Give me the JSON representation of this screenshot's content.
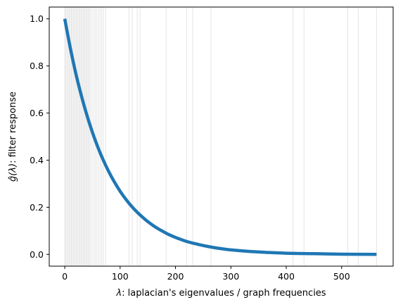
{
  "chart_data": {
    "type": "line",
    "title": "",
    "xlabel_symbol": "λ",
    "xlabel_text": ": laplacian's eigenvalues / graph frequencies",
    "ylabel_symbol": "ĝ(λ)",
    "ylabel_text": ": filter response",
    "xlim": [
      -28,
      593
    ],
    "ylim": [
      -0.05,
      1.05
    ],
    "xticks": [
      0,
      100,
      200,
      300,
      400,
      500
    ],
    "xtick_labels": [
      "0",
      "100",
      "200",
      "300",
      "400",
      "500"
    ],
    "yticks": [
      0.0,
      0.2,
      0.4,
      0.6,
      0.8,
      1.0
    ],
    "ytick_labels": [
      "0.0",
      "0.2",
      "0.4",
      "0.6",
      "0.8",
      "1.0"
    ],
    "grid": false,
    "line_color": "#1f77b4",
    "eigen_line_color": "#e4e4e4",
    "curve": {
      "x": [
        0,
        10,
        20,
        30,
        40,
        50,
        60,
        70,
        80,
        90,
        100,
        110,
        120,
        130,
        140,
        150,
        160,
        170,
        180,
        190,
        200,
        220,
        240,
        260,
        280,
        300,
        330,
        360,
        400,
        450,
        500,
        563
      ],
      "y": [
        1.0,
        0.877,
        0.768,
        0.674,
        0.591,
        0.518,
        0.454,
        0.398,
        0.349,
        0.306,
        0.268,
        0.235,
        0.206,
        0.181,
        0.159,
        0.139,
        0.122,
        0.107,
        0.094,
        0.082,
        0.072,
        0.055,
        0.043,
        0.033,
        0.025,
        0.019,
        0.013,
        0.009,
        0.005,
        0.003,
        0.001,
        0.0
      ]
    },
    "eigenvalues": [
      0,
      2,
      4,
      6,
      8,
      10,
      12,
      14,
      16,
      18,
      20,
      22,
      24,
      26,
      28,
      30,
      32,
      34,
      36,
      38,
      40,
      42,
      44,
      46,
      49,
      52,
      55,
      58,
      61,
      64,
      67,
      70,
      74,
      116,
      122,
      131,
      136,
      183,
      220,
      231,
      264,
      412,
      432,
      511,
      530,
      563
    ]
  }
}
